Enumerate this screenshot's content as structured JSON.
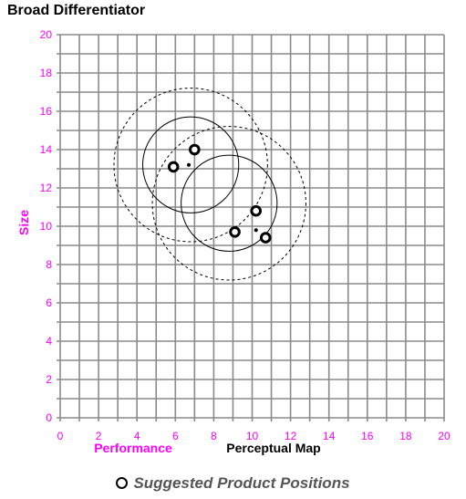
{
  "title": "Broad Differentiator",
  "colors": {
    "axis_text": "#ff00ff",
    "grid": "#8a8a8a",
    "marks": "#000000",
    "legend_text": "#555555"
  },
  "legend": {
    "label": "Suggested Product Positions",
    "icon": "ring-marker-icon"
  },
  "chart_data": {
    "type": "scatter",
    "title": "Perceptual Map",
    "xlabel": "Performance",
    "ylabel": "Size",
    "xlim": [
      0,
      20
    ],
    "ylim": [
      0,
      20
    ],
    "x_ticks": [
      0,
      2,
      4,
      6,
      8,
      10,
      12,
      14,
      16,
      18,
      20
    ],
    "y_ticks": [
      0,
      2,
      4,
      6,
      8,
      10,
      12,
      14,
      16,
      18,
      20
    ],
    "grid": true,
    "legend_position": "bottom",
    "products": [
      {
        "x": 5.9,
        "y": 13.1
      },
      {
        "x": 7.0,
        "y": 14.0
      },
      {
        "x": 9.1,
        "y": 9.7
      },
      {
        "x": 10.2,
        "y": 10.8
      },
      {
        "x": 10.7,
        "y": 9.4
      }
    ],
    "ideal_points": [
      {
        "x": 6.7,
        "y": 13.2
      },
      {
        "x": 10.2,
        "y": 9.8
      }
    ],
    "segments": [
      {
        "cx": 6.8,
        "cy": 13.2,
        "inner_r": 2.5,
        "outer_r": 4.0
      },
      {
        "cx": 8.8,
        "cy": 11.2,
        "inner_r": 2.5,
        "outer_r": 4.0
      }
    ]
  }
}
